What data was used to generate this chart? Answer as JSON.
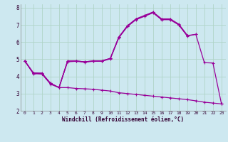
{
  "bg_color": "#cde8f0",
  "line_color": "#990099",
  "grid_color": "#b0d4c8",
  "xlabel": "Windchill (Refroidissement éolien,°C)",
  "xlim": [
    -0.5,
    23.5
  ],
  "ylim": [
    2.0,
    8.2
  ],
  "xticks": [
    0,
    1,
    2,
    3,
    4,
    5,
    6,
    7,
    8,
    9,
    10,
    11,
    12,
    13,
    14,
    15,
    16,
    17,
    18,
    19,
    20,
    21,
    22,
    23
  ],
  "yticks": [
    2,
    3,
    4,
    5,
    6,
    7,
    8
  ],
  "curve1_x": [
    0,
    1,
    2,
    3,
    4,
    5,
    6,
    7,
    8,
    9,
    10,
    11,
    12,
    13,
    14,
    15,
    16,
    17,
    18,
    19
  ],
  "curve1_y": [
    4.9,
    4.2,
    4.2,
    3.6,
    3.35,
    4.9,
    4.9,
    4.85,
    4.9,
    4.9,
    5.05,
    6.3,
    6.95,
    7.35,
    7.55,
    7.75,
    7.35,
    7.35,
    7.05,
    6.4
  ],
  "curve2_x": [
    0,
    1,
    2,
    3,
    4,
    5,
    6,
    7,
    8,
    9,
    10,
    11,
    12,
    13,
    14,
    15,
    16,
    17,
    18,
    19,
    20
  ],
  "curve2_y": [
    4.9,
    4.15,
    4.15,
    3.55,
    3.35,
    4.85,
    4.88,
    4.83,
    4.88,
    4.88,
    5.02,
    6.25,
    6.9,
    7.3,
    7.5,
    7.7,
    7.3,
    7.3,
    7.0,
    6.35,
    6.45
  ],
  "curve3_x": [
    0,
    1,
    2,
    3,
    4,
    5,
    6,
    7,
    8,
    9,
    10,
    11,
    12,
    13,
    14,
    15,
    16,
    17,
    18,
    19,
    20,
    21,
    22,
    23
  ],
  "curve3_y": [
    4.9,
    4.2,
    4.15,
    3.6,
    3.35,
    3.35,
    3.3,
    3.28,
    3.25,
    3.2,
    3.15,
    3.05,
    3.0,
    2.95,
    2.9,
    2.85,
    2.8,
    2.75,
    2.7,
    2.65,
    2.58,
    2.5,
    2.45,
    2.4
  ],
  "envelope_x": [
    0,
    1,
    2,
    3,
    4,
    5,
    6,
    7,
    8,
    9,
    10,
    11,
    12,
    13,
    14,
    15,
    16,
    17,
    18,
    19,
    20,
    21,
    22,
    23
  ],
  "envelope_y": [
    4.9,
    4.2,
    4.15,
    3.6,
    3.35,
    4.88,
    4.9,
    4.85,
    4.9,
    4.9,
    5.05,
    6.28,
    6.93,
    7.33,
    7.52,
    7.73,
    7.32,
    7.32,
    7.02,
    6.38,
    6.45,
    4.8,
    4.78,
    2.4
  ]
}
